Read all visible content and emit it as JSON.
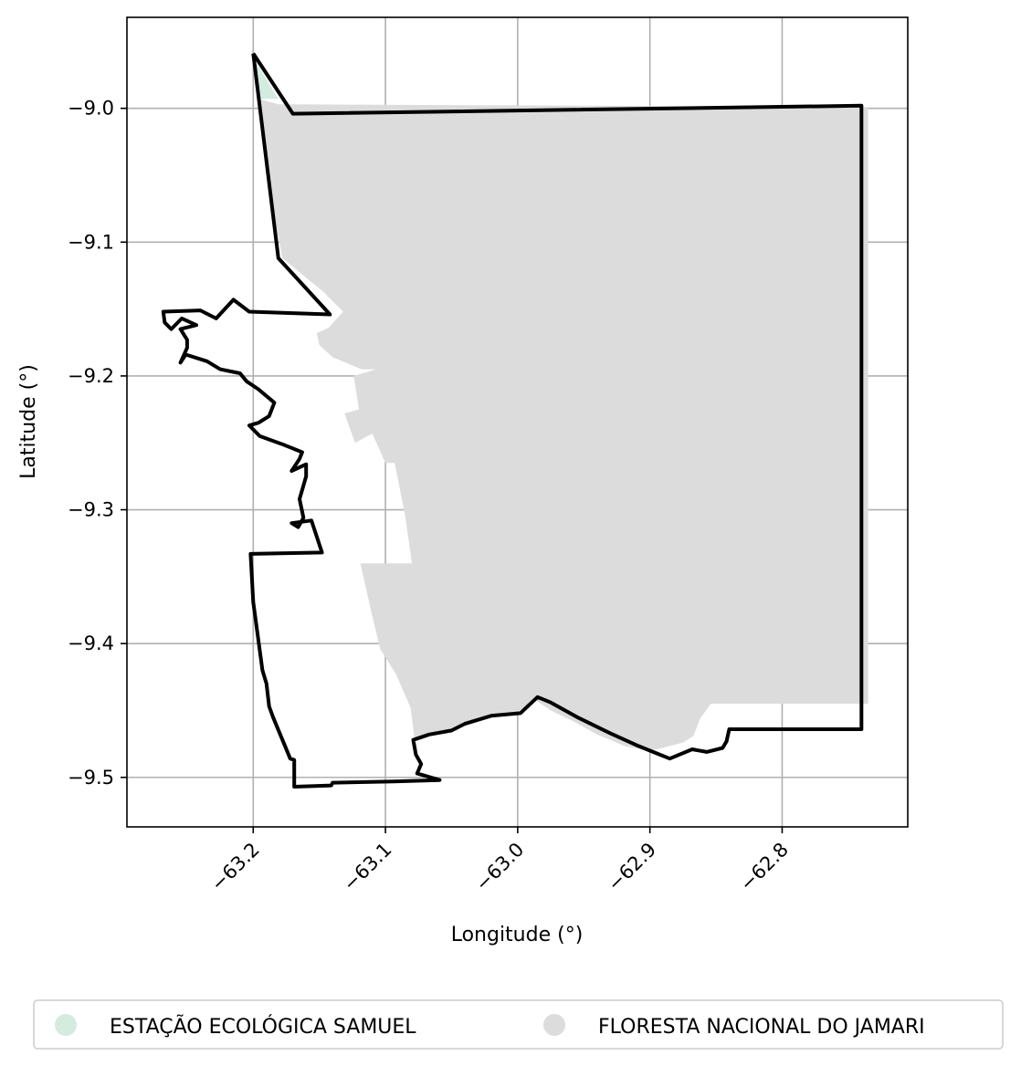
{
  "chart_data": {
    "type": "map",
    "xlabel": "Longitude (°)",
    "ylabel": "Latitude (°)",
    "xlim": [
      -63.2955,
      -62.705
    ],
    "ylim": [
      -9.537,
      -8.932
    ],
    "x_ticks": [
      {
        "value": -63.2,
        "label": "−63.2"
      },
      {
        "value": -63.1,
        "label": "−63.1"
      },
      {
        "value": -63.0,
        "label": "−63.0"
      },
      {
        "value": -62.9,
        "label": "−62.9"
      },
      {
        "value": -62.8,
        "label": "−62.8"
      }
    ],
    "y_ticks": [
      {
        "value": -9.0,
        "label": "−9.0"
      },
      {
        "value": -9.1,
        "label": "−9.1"
      },
      {
        "value": -9.2,
        "label": "−9.2"
      },
      {
        "value": -9.3,
        "label": "−9.3"
      },
      {
        "value": -9.4,
        "label": "−9.4"
      },
      {
        "value": -9.5,
        "label": "−9.5"
      }
    ],
    "grid": true,
    "legend_position": "bottom",
    "legend": [
      {
        "label": "ESTAÇÃO ECOLÓGICA SAMUEL",
        "color": "#d4ebe0"
      },
      {
        "label": "FLORESTA NACIONAL DO JAMARI",
        "color": "#dcdcdc"
      }
    ],
    "areas": [
      {
        "name": "ESTAÇÃO ECOLÓGICA SAMUEL",
        "color": "#d4ebe0",
        "coords": [
          [
            -63.2,
            -8.962
          ],
          [
            -63.181,
            -8.993
          ],
          [
            -63.196,
            -8.993
          ]
        ]
      },
      {
        "name": "FLORESTA NACIONAL DO JAMARI",
        "color": "#dcdcdc",
        "coords": [
          [
            -63.196,
            -8.993
          ],
          [
            -63.181,
            -8.997
          ],
          [
            -62.735,
            -8.999
          ],
          [
            -62.735,
            -9.445
          ],
          [
            -62.854,
            -9.445
          ],
          [
            -62.862,
            -9.456
          ],
          [
            -62.867,
            -9.469
          ],
          [
            -62.875,
            -9.474
          ],
          [
            -62.895,
            -9.479
          ],
          [
            -62.9,
            -9.48
          ],
          [
            -62.918,
            -9.477
          ],
          [
            -62.94,
            -9.468
          ],
          [
            -62.958,
            -9.458
          ],
          [
            -62.975,
            -9.45
          ],
          [
            -62.987,
            -9.442
          ],
          [
            -63.0,
            -9.451
          ],
          [
            -63.018,
            -9.453
          ],
          [
            -63.035,
            -9.46
          ],
          [
            -63.055,
            -9.466
          ],
          [
            -63.078,
            -9.471
          ],
          [
            -63.081,
            -9.448
          ],
          [
            -63.092,
            -9.423
          ],
          [
            -63.104,
            -9.404
          ],
          [
            -63.111,
            -9.375
          ],
          [
            -63.119,
            -9.34
          ],
          [
            -63.08,
            -9.34
          ],
          [
            -63.085,
            -9.305
          ],
          [
            -63.093,
            -9.265
          ],
          [
            -63.1,
            -9.265
          ],
          [
            -63.11,
            -9.243
          ],
          [
            -63.123,
            -9.25
          ],
          [
            -63.131,
            -9.228
          ],
          [
            -63.12,
            -9.225
          ],
          [
            -63.124,
            -9.2
          ],
          [
            -63.107,
            -9.195
          ],
          [
            -63.118,
            -9.195
          ],
          [
            -63.14,
            -9.186
          ],
          [
            -63.15,
            -9.177
          ],
          [
            -63.152,
            -9.168
          ],
          [
            -63.143,
            -9.164
          ],
          [
            -63.132,
            -9.152
          ],
          [
            -63.147,
            -9.137
          ],
          [
            -63.178,
            -9.112
          ],
          [
            -63.19,
            -9.05
          ]
        ]
      }
    ],
    "boundary_color": "#000000",
    "boundary": [
      [
        -63.2,
        -8.959
      ],
      [
        -63.17,
        -9.004
      ],
      [
        -62.74,
        -8.998
      ],
      [
        -62.74,
        -9.464
      ],
      [
        -62.84,
        -9.464
      ],
      [
        -62.842,
        -9.473
      ],
      [
        -62.845,
        -9.478
      ],
      [
        -62.857,
        -9.481
      ],
      [
        -62.868,
        -9.479
      ],
      [
        -62.885,
        -9.486
      ],
      [
        -62.895,
        -9.482
      ],
      [
        -62.91,
        -9.476
      ],
      [
        -62.93,
        -9.467
      ],
      [
        -62.955,
        -9.455
      ],
      [
        -62.975,
        -9.444
      ],
      [
        -62.985,
        -9.44
      ],
      [
        -62.998,
        -9.452
      ],
      [
        -63.02,
        -9.454
      ],
      [
        -63.04,
        -9.46
      ],
      [
        -63.05,
        -9.465
      ],
      [
        -63.067,
        -9.468
      ],
      [
        -63.079,
        -9.472
      ],
      [
        -63.077,
        -9.483
      ],
      [
        -63.073,
        -9.49
      ],
      [
        -63.076,
        -9.497
      ],
      [
        -63.059,
        -9.502
      ],
      [
        -63.094,
        -9.503
      ],
      [
        -63.14,
        -9.504
      ],
      [
        -63.141,
        -9.506
      ],
      [
        -63.169,
        -9.507
      ],
      [
        -63.169,
        -9.487
      ],
      [
        -63.172,
        -9.486
      ],
      [
        -63.185,
        -9.455
      ],
      [
        -63.188,
        -9.447
      ],
      [
        -63.19,
        -9.43
      ],
      [
        -63.193,
        -9.42
      ],
      [
        -63.2,
        -9.369
      ],
      [
        -63.202,
        -9.333
      ],
      [
        -63.148,
        -9.332
      ],
      [
        -63.156,
        -9.308
      ],
      [
        -63.171,
        -9.31
      ],
      [
        -63.166,
        -9.313
      ],
      [
        -63.162,
        -9.306
      ],
      [
        -63.165,
        -9.292
      ],
      [
        -63.16,
        -9.275
      ],
      [
        -63.16,
        -9.266
      ],
      [
        -63.171,
        -9.271
      ],
      [
        -63.165,
        -9.262
      ],
      [
        -63.163,
        -9.257
      ],
      [
        -63.178,
        -9.251
      ],
      [
        -63.195,
        -9.245
      ],
      [
        -63.202,
        -9.238
      ],
      [
        -63.203,
        -9.237
      ],
      [
        -63.196,
        -9.235
      ],
      [
        -63.188,
        -9.23
      ],
      [
        -63.184,
        -9.22
      ],
      [
        -63.196,
        -9.21
      ],
      [
        -63.205,
        -9.204
      ],
      [
        -63.21,
        -9.198
      ],
      [
        -63.225,
        -9.195
      ],
      [
        -63.235,
        -9.189
      ],
      [
        -63.251,
        -9.184
      ],
      [
        -63.255,
        -9.19
      ],
      [
        -63.25,
        -9.179
      ],
      [
        -63.25,
        -9.173
      ],
      [
        -63.255,
        -9.165
      ],
      [
        -63.243,
        -9.162
      ],
      [
        -63.254,
        -9.157
      ],
      [
        -63.262,
        -9.165
      ],
      [
        -63.267,
        -9.16
      ],
      [
        -63.268,
        -9.152
      ],
      [
        -63.24,
        -9.151
      ],
      [
        -63.228,
        -9.157
      ],
      [
        -63.215,
        -9.143
      ],
      [
        -63.203,
        -9.152
      ],
      [
        -63.142,
        -9.154
      ],
      [
        -63.181,
        -9.112
      ],
      [
        -63.2,
        -8.959
      ]
    ]
  }
}
